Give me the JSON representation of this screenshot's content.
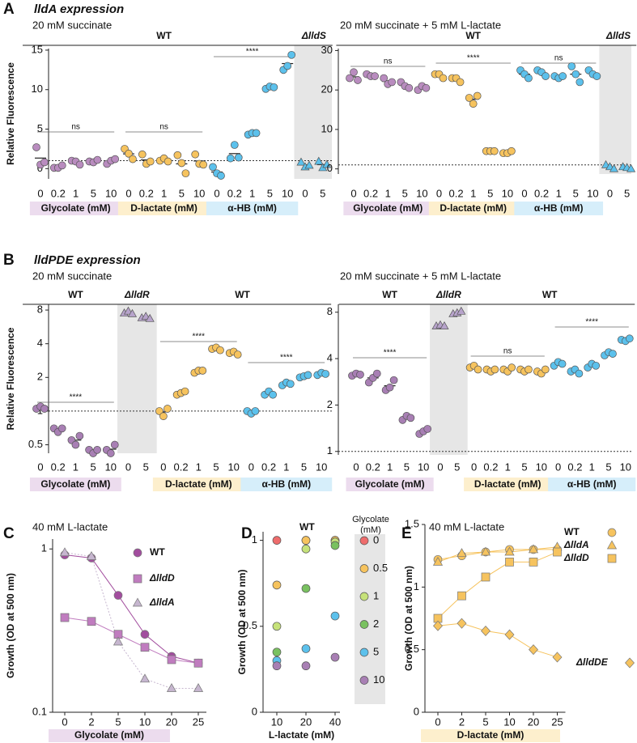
{
  "chart_data": [
    {
      "type": "dot",
      "panel": "A",
      "title": "lldA expression",
      "subtitle": "20 mM succinate",
      "y_label": "Relative Fluorescence",
      "ylim": [
        -1.3,
        15.2
      ],
      "yticks": [
        0,
        5,
        10,
        15
      ],
      "reference_line": 1,
      "headers": [
        "WT",
        "ΔlldS"
      ],
      "annotations": [
        "ns",
        "ns",
        "****"
      ],
      "groups": [
        {
          "label": "Glycolate (mM)",
          "color": "#b98cbf",
          "band_color": "#ecdcee",
          "marker": "circle",
          "categories": [
            "0",
            "0.2",
            "1",
            "5",
            "10"
          ],
          "values": [
            [
              2.7,
              0.5,
              0.8
            ],
            [
              0.1,
              0.1,
              0.4
            ],
            [
              1.0,
              0.9,
              0.5
            ],
            [
              0.9,
              0.8,
              1.1
            ],
            [
              0.6,
              1.0,
              1.2
            ]
          ]
        },
        {
          "label": "D-lactate (mM)",
          "color": "#f6c35e",
          "band_color": "#fdefcd",
          "marker": "circle",
          "categories": [
            "0",
            "0.2",
            "1",
            "5",
            "10"
          ],
          "values": [
            [
              2.5,
              1.9,
              1.2
            ],
            [
              1.8,
              0.6,
              0.9
            ],
            [
              1.0,
              1.3,
              0.9
            ],
            [
              1.7,
              0.7,
              -0.6
            ],
            [
              1.8,
              0.6,
              0.5
            ]
          ]
        },
        {
          "label": "α-HB (mM)",
          "color": "#5cc1ec",
          "band_color": "#d6eefa",
          "marker": "circle",
          "categories": [
            "0",
            "0.2",
            "1",
            "5",
            "10"
          ],
          "values": [
            [
              0.2,
              -0.6,
              -0.9
            ],
            [
              1.3,
              3.0,
              1.4
            ],
            [
              4.3,
              4.5,
              4.5
            ],
            [
              10.1,
              10.4,
              10.3
            ],
            [
              12.5,
              13.0,
              14.4
            ]
          ]
        },
        {
          "color": "#5cc1ec",
          "marker": "triangle",
          "background": "#e6e6e6",
          "categories": [
            "0",
            "5"
          ],
          "values": [
            [
              0.8,
              0.2,
              0.4
            ],
            [
              0.9,
              0.1,
              0.5
            ]
          ]
        }
      ]
    },
    {
      "type": "dot",
      "subtitle": "20 mM succinate + 5 mM L-lactate",
      "ylim": [
        -1.3,
        30.5
      ],
      "yticks": [
        0,
        10,
        20,
        30
      ],
      "reference_line": 1,
      "headers": [
        "WT",
        "ΔlldS"
      ],
      "annotations": [
        "ns",
        "****",
        "ns"
      ],
      "groups": [
        {
          "label": "Glycolate (mM)",
          "color": "#b98cbf",
          "band_color": "#ecdcee",
          "marker": "circle",
          "categories": [
            "0",
            "0.2",
            "1",
            "5",
            "10"
          ],
          "values": [
            [
              23,
              24.5,
              22.5
            ],
            [
              24,
              23.5,
              23.5
            ],
            [
              23,
              21.5,
              22
            ],
            [
              22,
              21,
              20.5
            ],
            [
              20,
              21,
              20.5
            ]
          ]
        },
        {
          "label": "D-lactate (mM)",
          "color": "#f6c35e",
          "band_color": "#fdefcd",
          "marker": "circle",
          "categories": [
            "0",
            "0.2",
            "1",
            "5",
            "10"
          ],
          "values": [
            [
              24,
              24,
              23
            ],
            [
              23,
              23,
              22
            ],
            [
              18,
              16.5,
              18.5
            ],
            [
              4.5,
              4.5,
              4.5
            ],
            [
              4,
              4,
              4.5
            ]
          ]
        },
        {
          "label": "α-HB (mM)",
          "color": "#5cc1ec",
          "band_color": "#d6eefa",
          "marker": "circle",
          "categories": [
            "0",
            "0.2",
            "1",
            "5",
            "10"
          ],
          "values": [
            [
              25,
              24,
              23
            ],
            [
              25,
              24.5,
              23.5
            ],
            [
              23.5,
              23,
              23.5
            ],
            [
              26,
              24,
              22
            ],
            [
              25,
              24,
              23.5
            ]
          ]
        },
        {
          "color": "#5cc1ec",
          "marker": "triangle",
          "background": "#e6e6e6",
          "categories": [
            "0",
            "5"
          ],
          "values": [
            [
              1,
              0.5,
              0
            ],
            [
              0.5,
              0.3,
              0
            ]
          ]
        }
      ]
    },
    {
      "type": "dot",
      "panel": "B",
      "title": "lldPDE expression",
      "subtitle": "20 mM succinate",
      "y_label": "Relative Fluorescence",
      "log_scale": true,
      "ylim": [
        0.42,
        9
      ],
      "yticks": [
        0.5,
        1,
        2,
        4,
        8
      ],
      "reference_line": 1,
      "headers": [
        "WT",
        "ΔlldR",
        "WT"
      ],
      "annotations": [
        "****",
        "****",
        "****"
      ],
      "groups": [
        {
          "label": "Glycolate (mM)",
          "color": "#a87fb4",
          "band_color": "#ecdcee",
          "marker": "circle",
          "categories": [
            "0",
            "0.2",
            "1",
            "5",
            "10"
          ],
          "values": [
            [
              1.05,
              1.1,
              1.05
            ],
            [
              0.7,
              0.65,
              0.7
            ],
            [
              0.55,
              0.5,
              0.6
            ],
            [
              0.45,
              0.42,
              0.45
            ],
            [
              0.45,
              0.42,
              0.5
            ]
          ]
        },
        {
          "color": "#b7a3cb",
          "marker": "triangle",
          "background": "#e6e6e6",
          "categories": [
            "0",
            "5"
          ],
          "values": [
            [
              7.5,
              7.8,
              7.4
            ],
            [
              6.8,
              7.0,
              6.7
            ]
          ]
        },
        {
          "label": "D-lactate (mM)",
          "color": "#f6c35e",
          "band_color": "#fdefcd",
          "marker": "circle",
          "categories": [
            "0",
            "0.2",
            "1",
            "5",
            "10"
          ],
          "values": [
            [
              1.0,
              0.9,
              1.05
            ],
            [
              1.4,
              1.45,
              1.5
            ],
            [
              2.2,
              2.3,
              2.3
            ],
            [
              3.6,
              3.7,
              3.5
            ],
            [
              3.3,
              3.4,
              3.2
            ]
          ]
        },
        {
          "label": "α-HB (mM)",
          "color": "#5cc1ec",
          "band_color": "#d6eefa",
          "marker": "circle",
          "categories": [
            "0",
            "0.2",
            "1",
            "5",
            "10"
          ],
          "values": [
            [
              1.0,
              0.95,
              1.0
            ],
            [
              1.4,
              1.5,
              1.4
            ],
            [
              1.7,
              1.8,
              1.75
            ],
            [
              2.0,
              2.05,
              2.1
            ],
            [
              2.1,
              2.2,
              2.15
            ]
          ]
        }
      ]
    },
    {
      "type": "dot",
      "subtitle": "20 mM succinate + 5 mM L-lactate",
      "log_scale": true,
      "ylim": [
        0.95,
        9
      ],
      "yticks": [
        1,
        2,
        4,
        8
      ],
      "reference_line": 1,
      "headers": [
        "WT",
        "ΔlldR",
        "WT"
      ],
      "annotations": [
        "****",
        "ns",
        "****"
      ],
      "groups": [
        {
          "label": "Glycolate (mM)",
          "color": "#a87fb4",
          "band_color": "#ecdcee",
          "marker": "circle",
          "categories": [
            "0",
            "0.2",
            "1",
            "5",
            "10"
          ],
          "values": [
            [
              3.1,
              3.2,
              3.15
            ],
            [
              2.8,
              3.0,
              3.2
            ],
            [
              2.5,
              2.6,
              2.9
            ],
            [
              1.6,
              1.7,
              1.65
            ],
            [
              1.3,
              1.35,
              1.4
            ]
          ]
        },
        {
          "color": "#b7a3cb",
          "marker": "triangle",
          "background": "#e6e6e6",
          "categories": [
            "0",
            "5"
          ],
          "values": [
            [
              6.5,
              6.6,
              6.5
            ],
            [
              7.8,
              7.9,
              8.1
            ]
          ]
        },
        {
          "label": "D-lactate (mM)",
          "color": "#f6c35e",
          "band_color": "#fdefcd",
          "marker": "circle",
          "categories": [
            "0",
            "0.2",
            "1",
            "5",
            "10"
          ],
          "values": [
            [
              3.5,
              3.6,
              3.4
            ],
            [
              3.4,
              3.3,
              3.4
            ],
            [
              3.4,
              3.3,
              3.5
            ],
            [
              3.4,
              3.3,
              3.4
            ],
            [
              3.3,
              3.2,
              3.4
            ]
          ]
        },
        {
          "label": "α-HB (mM)",
          "color": "#5cc1ec",
          "band_color": "#d6eefa",
          "marker": "circle",
          "categories": [
            "0",
            "0.2",
            "1",
            "5",
            "10"
          ],
          "values": [
            [
              3.6,
              3.8,
              3.7
            ],
            [
              3.3,
              3.4,
              3.2
            ],
            [
              3.5,
              3.7,
              3.6
            ],
            [
              4.2,
              4.4,
              4.3
            ],
            [
              5.3,
              5.2,
              5.4
            ]
          ]
        }
      ]
    },
    {
      "type": "line",
      "panel": "C",
      "subtitle": "40 mM L-lactate",
      "y_label": "Growth (OD at 500 nm)",
      "x_label": "Glycolate (mM)",
      "band_color": "#ecdcee",
      "log_scale": true,
      "ylim": [
        0.1,
        1.15
      ],
      "yticks": [
        0.1,
        1
      ],
      "categories": [
        "0",
        "2",
        "5",
        "10",
        "20",
        "25"
      ],
      "series": [
        {
          "name": "WT",
          "color": "#a24d9e",
          "marker": "circle",
          "values": [
            0.92,
            0.88,
            0.52,
            0.3,
            0.22,
            0.2
          ]
        },
        {
          "name": "ΔlldD",
          "color": "#c07cbf",
          "marker": "square",
          "values": [
            0.38,
            0.36,
            0.3,
            0.25,
            0.21,
            0.2
          ]
        },
        {
          "name": "ΔlldA",
          "color": "#c6b6cf",
          "marker": "triangle",
          "values": [
            0.95,
            0.9,
            0.27,
            0.16,
            0.14,
            0.14
          ]
        }
      ]
    },
    {
      "type": "scatter",
      "panel": "D",
      "title": "WT",
      "y_label": "Growth (OD at 500 nm)",
      "x_label": "L-lactate (mM)",
      "legend_title": "Glycolate (mM)",
      "ylim": [
        0,
        1.05
      ],
      "yticks": [
        0,
        0.5,
        1
      ],
      "categories": [
        "10",
        "20",
        "40"
      ],
      "series": [
        {
          "name": "0",
          "color": "#ee6c6c",
          "values": [
            1.0,
            1.0,
            1.0
          ]
        },
        {
          "name": "0.5",
          "color": "#f6c35e",
          "values": [
            0.74,
            1.0,
            1.0
          ]
        },
        {
          "name": "1",
          "color": "#c6e27a",
          "values": [
            0.5,
            0.95,
            0.99
          ]
        },
        {
          "name": "2",
          "color": "#79c160",
          "values": [
            0.35,
            0.72,
            0.97
          ]
        },
        {
          "name": "5",
          "color": "#5cc1ec",
          "values": [
            0.3,
            0.37,
            0.56
          ]
        },
        {
          "name": "10",
          "color": "#a87fb4",
          "values": [
            0.27,
            0.27,
            0.32
          ]
        }
      ]
    },
    {
      "type": "line",
      "panel": "E",
      "subtitle": "40 mM L-lactate",
      "y_label": "Growth (OD at 500 nm)",
      "x_label": "D-lactate (mM)",
      "band_color": "#fdefcd",
      "ylim": [
        0,
        1.5
      ],
      "yticks": [
        0,
        0.5,
        1,
        1.5
      ],
      "categories": [
        "0",
        "2",
        "5",
        "10",
        "20",
        "25"
      ],
      "series": [
        {
          "name": "WT",
          "color": "#f6c35e",
          "marker": "circle",
          "values": [
            1.22,
            1.25,
            1.28,
            1.3,
            1.3,
            1.3
          ]
        },
        {
          "name": "ΔlldA",
          "color": "#f6c35e",
          "marker": "triangle",
          "values": [
            1.2,
            1.27,
            1.28,
            1.28,
            1.3,
            1.32
          ]
        },
        {
          "name": "ΔlldD",
          "color": "#f6c35e",
          "marker": "square",
          "values": [
            0.75,
            0.93,
            1.08,
            1.2,
            1.2,
            1.28
          ]
        },
        {
          "name": "ΔlldDE",
          "color": "#f6c35e",
          "marker": "diamond",
          "values": [
            0.69,
            0.71,
            0.65,
            0.62,
            0.5,
            0.44
          ]
        }
      ]
    }
  ]
}
